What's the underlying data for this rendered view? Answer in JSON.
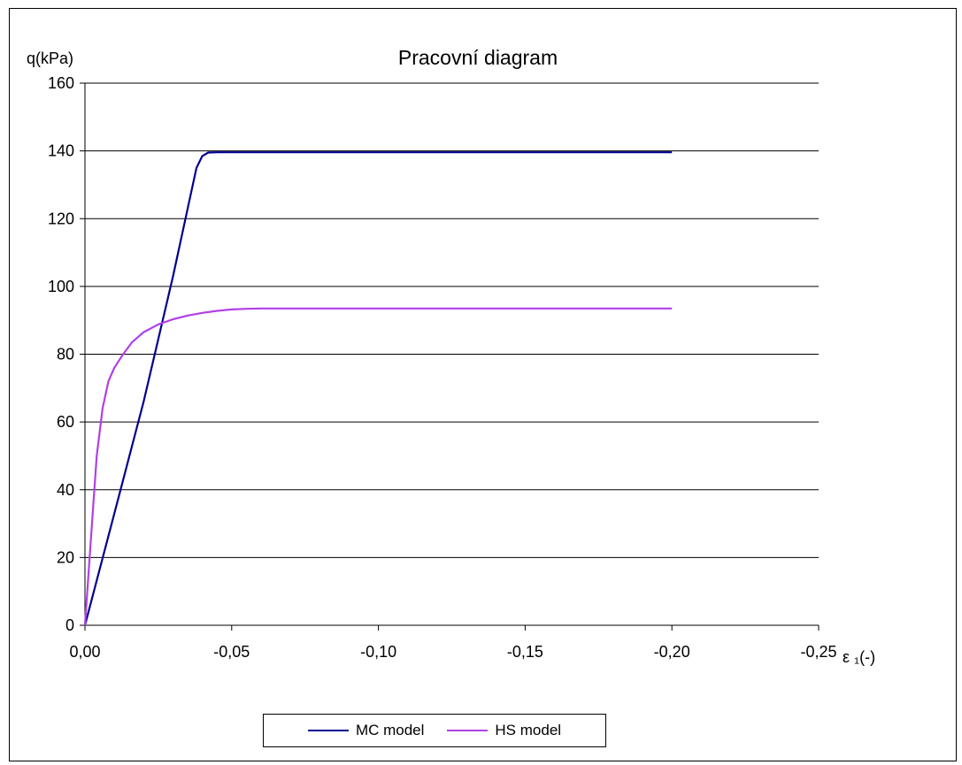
{
  "colors": {
    "mc": "#000090",
    "hs": "#b040e8",
    "grid": "#000000"
  },
  "chart_data": {
    "type": "line",
    "title": "Pracovní diagram",
    "ylabel": "q(kPa)",
    "xlabel": "ε ₁(-)",
    "xlim": [
      0,
      -0.25
    ],
    "ylim": [
      0,
      160
    ],
    "x_ticks": [
      0,
      -0.05,
      -0.1,
      -0.15,
      -0.2,
      -0.25
    ],
    "x_tick_labels": [
      "0,00",
      "-0,05",
      "-0,10",
      "-0,15",
      "-0,20",
      "-0,25"
    ],
    "y_ticks": [
      0,
      20,
      40,
      60,
      80,
      100,
      120,
      140,
      160
    ],
    "y_tick_labels": [
      "0",
      "20",
      "40",
      "60",
      "80",
      "100",
      "120",
      "140",
      "160"
    ],
    "grid": "horizontal",
    "legend_position": "bottom",
    "series": [
      {
        "name": "MC model",
        "color_key": "mc",
        "x": [
          0,
          -0.01,
          -0.02,
          -0.03,
          -0.038,
          -0.04,
          -0.042,
          -0.045,
          -0.1,
          -0.15,
          -0.2
        ],
        "y": [
          0,
          33,
          66,
          103,
          135,
          138.5,
          139.5,
          139.6,
          139.6,
          139.6,
          139.6
        ]
      },
      {
        "name": "HS model",
        "color_key": "hs",
        "x": [
          0,
          -0.002,
          -0.004,
          -0.006,
          -0.008,
          -0.01,
          -0.013,
          -0.016,
          -0.02,
          -0.025,
          -0.03,
          -0.035,
          -0.04,
          -0.045,
          -0.05,
          -0.055,
          -0.06,
          -0.1,
          -0.15,
          -0.2
        ],
        "y": [
          0,
          25,
          50,
          64,
          72,
          76,
          80,
          83.5,
          86.5,
          88.8,
          90.3,
          91.4,
          92.2,
          92.8,
          93.2,
          93.4,
          93.5,
          93.5,
          93.5,
          93.5
        ]
      }
    ]
  }
}
